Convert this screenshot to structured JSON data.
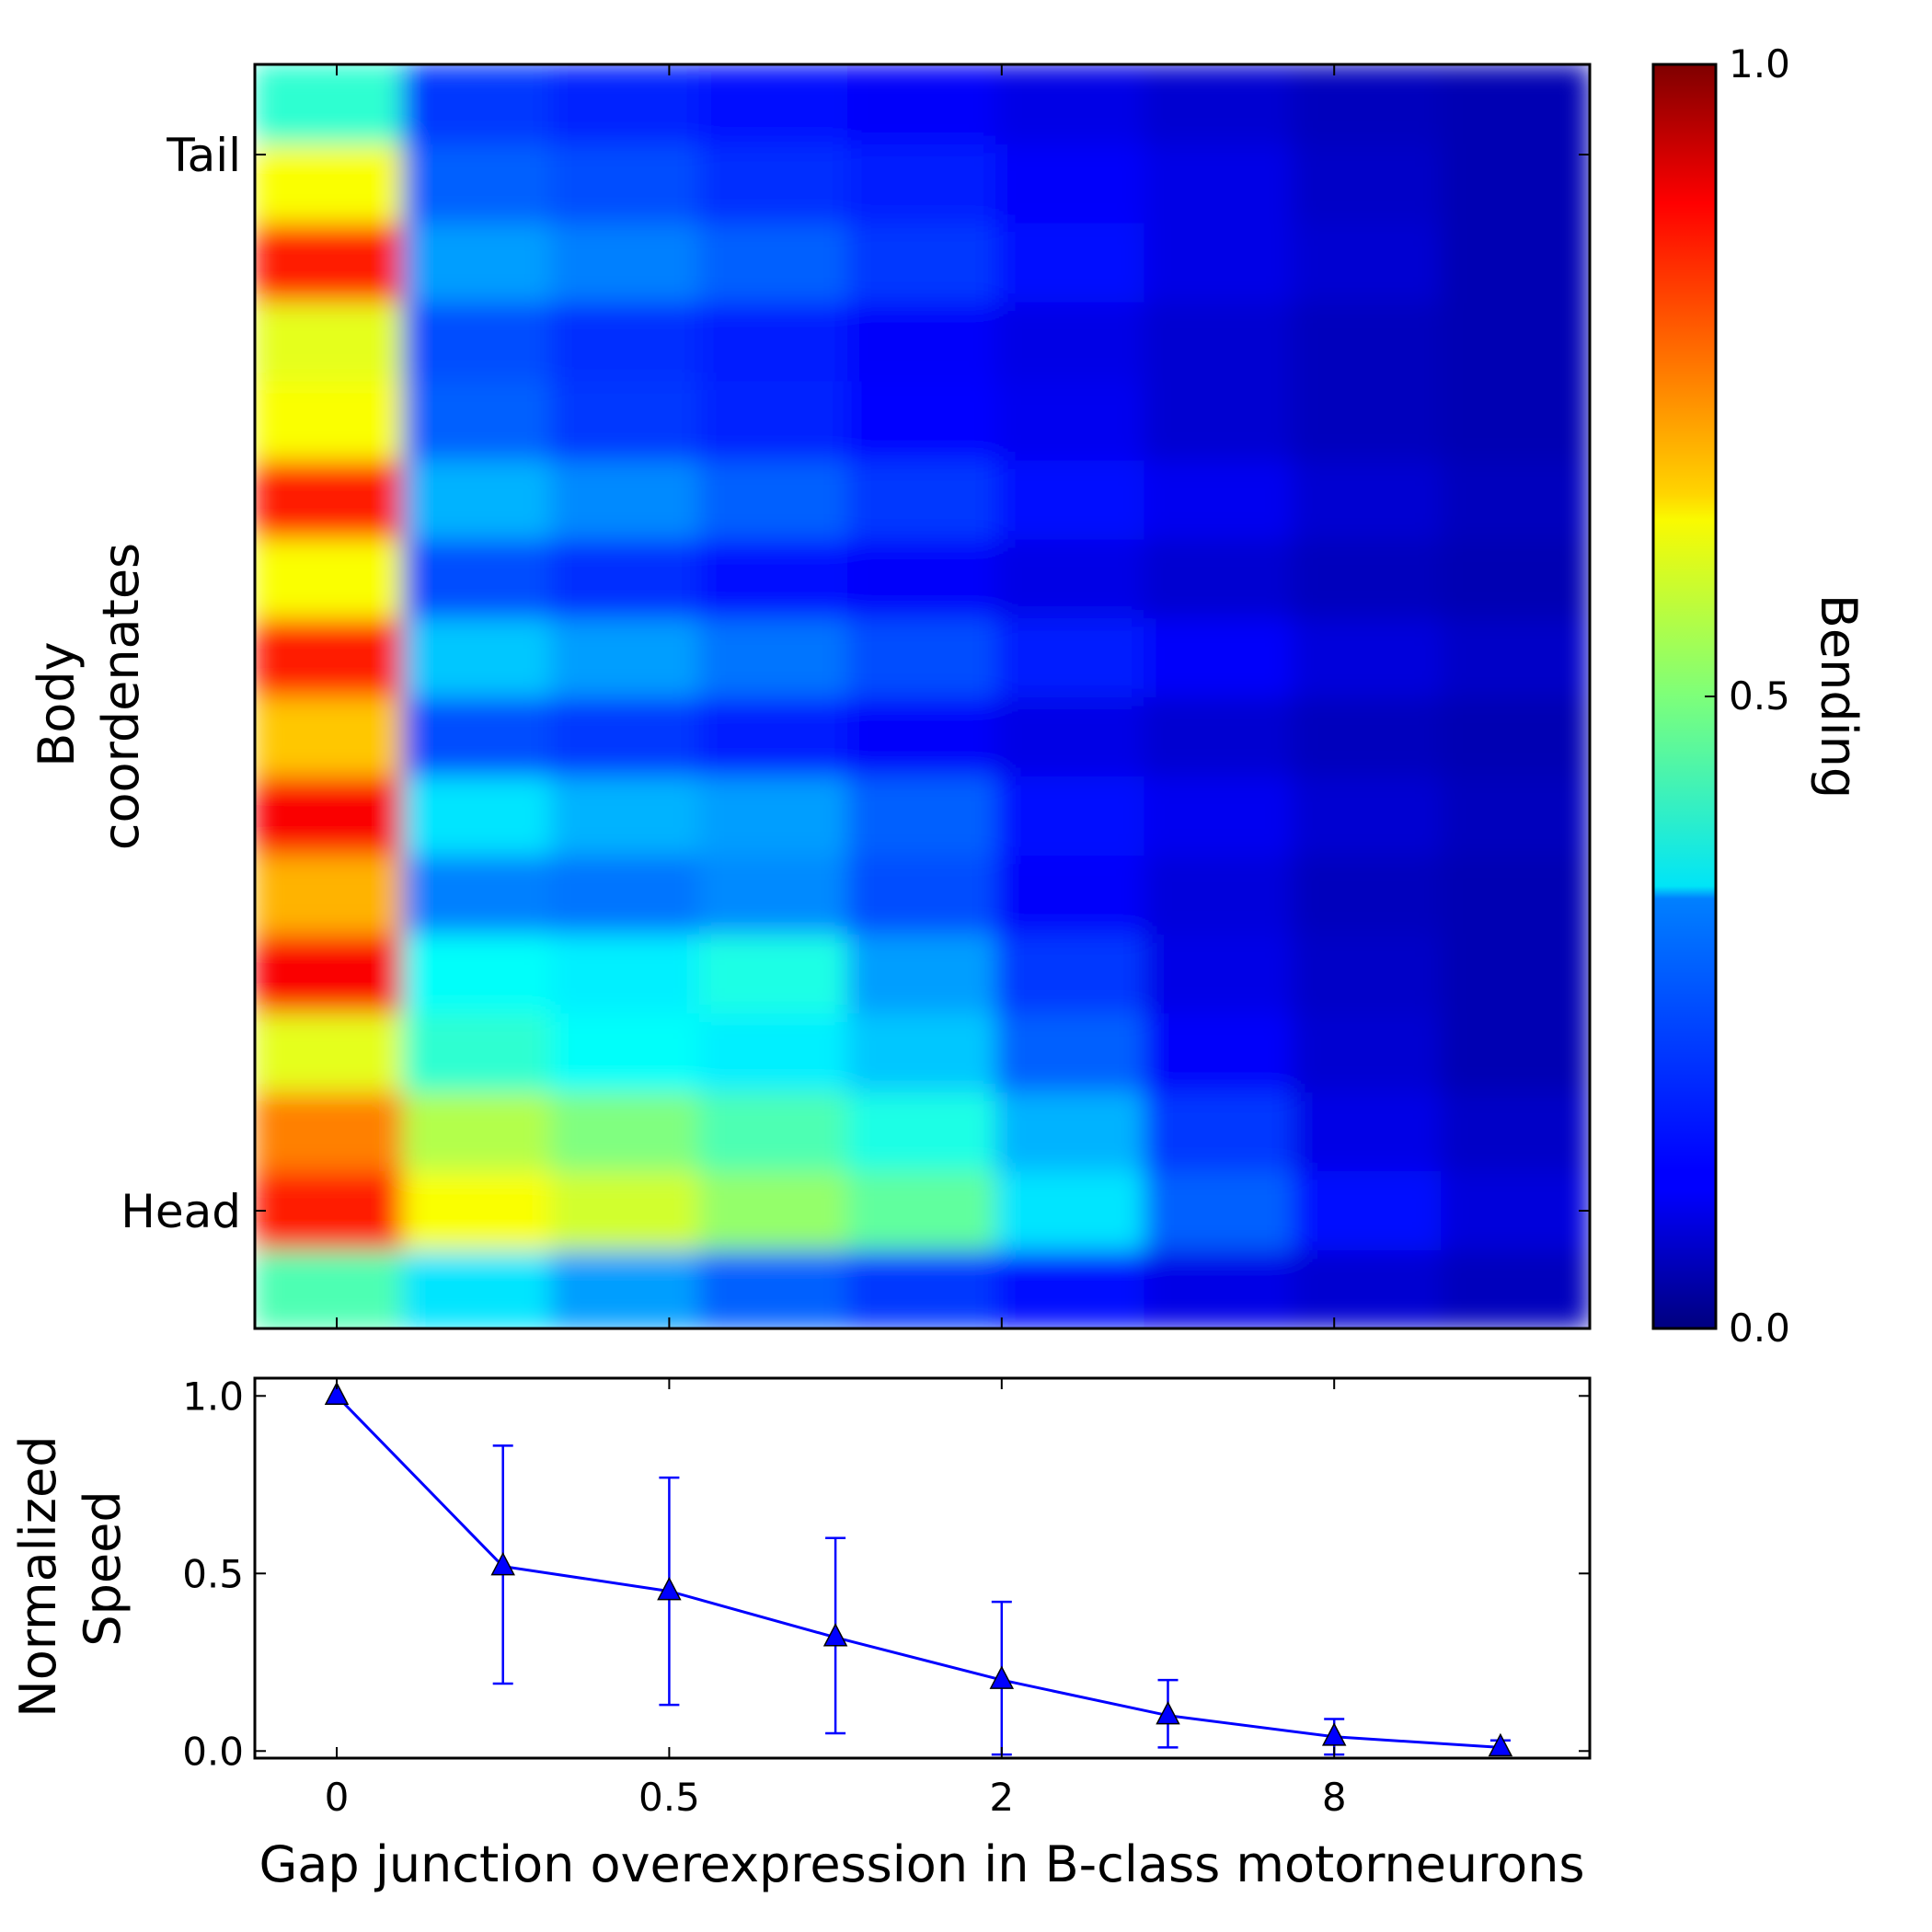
{
  "chart_data": [
    {
      "type": "heatmap",
      "ylabel_lines": [
        "Body",
        "coordenates"
      ],
      "yticks": [
        "Tail",
        "Head"
      ],
      "colorbar": {
        "label": "Bending",
        "range": [
          0.0,
          1.0
        ],
        "ticks": [
          "1.0",
          "0.5",
          "0.0"
        ],
        "colormap": "jet"
      },
      "x_columns": 9,
      "y_rows": 16,
      "y_row_order": "bottom-to-top",
      "values": [
        [
          0.45,
          0.35,
          0.28,
          0.22,
          0.18,
          0.14,
          0.1,
          0.08,
          0.06
        ],
        [
          0.85,
          0.62,
          0.58,
          0.52,
          0.47,
          0.35,
          0.22,
          0.14,
          0.09
        ],
        [
          0.75,
          0.55,
          0.5,
          0.45,
          0.4,
          0.3,
          0.18,
          0.1,
          0.07
        ],
        [
          0.6,
          0.42,
          0.38,
          0.36,
          0.32,
          0.22,
          0.12,
          0.08,
          0.05
        ],
        [
          0.88,
          0.38,
          0.36,
          0.4,
          0.28,
          0.18,
          0.1,
          0.07,
          0.05
        ],
        [
          0.7,
          0.25,
          0.24,
          0.26,
          0.2,
          0.12,
          0.09,
          0.06,
          0.05
        ],
        [
          0.88,
          0.35,
          0.3,
          0.28,
          0.22,
          0.14,
          0.11,
          0.08,
          0.06
        ],
        [
          0.68,
          0.2,
          0.18,
          0.15,
          0.12,
          0.1,
          0.08,
          0.06,
          0.05
        ],
        [
          0.85,
          0.32,
          0.28,
          0.24,
          0.2,
          0.15,
          0.12,
          0.09,
          0.07
        ],
        [
          0.62,
          0.2,
          0.17,
          0.14,
          0.12,
          0.1,
          0.08,
          0.06,
          0.05
        ],
        [
          0.85,
          0.3,
          0.26,
          0.22,
          0.18,
          0.14,
          0.11,
          0.08,
          0.06
        ],
        [
          0.62,
          0.22,
          0.18,
          0.16,
          0.13,
          0.11,
          0.08,
          0.06,
          0.05
        ],
        [
          0.6,
          0.2,
          0.17,
          0.15,
          0.12,
          0.1,
          0.08,
          0.06,
          0.05
        ],
        [
          0.85,
          0.28,
          0.25,
          0.22,
          0.18,
          0.14,
          0.1,
          0.08,
          0.05
        ],
        [
          0.62,
          0.22,
          0.2,
          0.17,
          0.15,
          0.12,
          0.1,
          0.07,
          0.05
        ],
        [
          0.42,
          0.18,
          0.16,
          0.14,
          0.12,
          0.1,
          0.08,
          0.06,
          0.05
        ]
      ]
    },
    {
      "type": "line",
      "ylabel_lines": [
        "Normalized",
        "Speed"
      ],
      "xlabel": "Gap junction overexpression in B-class motorneurons",
      "xticks": [
        "0",
        "0.5",
        "2",
        "8"
      ],
      "ylim": [
        -0.02,
        1.05
      ],
      "yticks": [
        "1.0",
        "0.5",
        "0.0"
      ],
      "series": [
        {
          "color": "#0000ff",
          "marker": "triangle",
          "points": [
            {
              "x_index": 0,
              "y": 1.0,
              "err_low": 0.0,
              "err_high": 0.0
            },
            {
              "x_index": 1,
              "y": 0.52,
              "err_low": 0.33,
              "err_high": 0.34
            },
            {
              "x_index": 2,
              "y": 0.45,
              "err_low": 0.32,
              "err_high": 0.32
            },
            {
              "x_index": 3,
              "y": 0.32,
              "err_low": 0.27,
              "err_high": 0.28
            },
            {
              "x_index": 4,
              "y": 0.2,
              "err_low": 0.21,
              "err_high": 0.22
            },
            {
              "x_index": 5,
              "y": 0.1,
              "err_low": 0.09,
              "err_high": 0.1
            },
            {
              "x_index": 6,
              "y": 0.04,
              "err_low": 0.05,
              "err_high": 0.05
            },
            {
              "x_index": 7,
              "y": 0.01,
              "err_low": 0.02,
              "err_high": 0.02
            }
          ]
        }
      ]
    }
  ]
}
